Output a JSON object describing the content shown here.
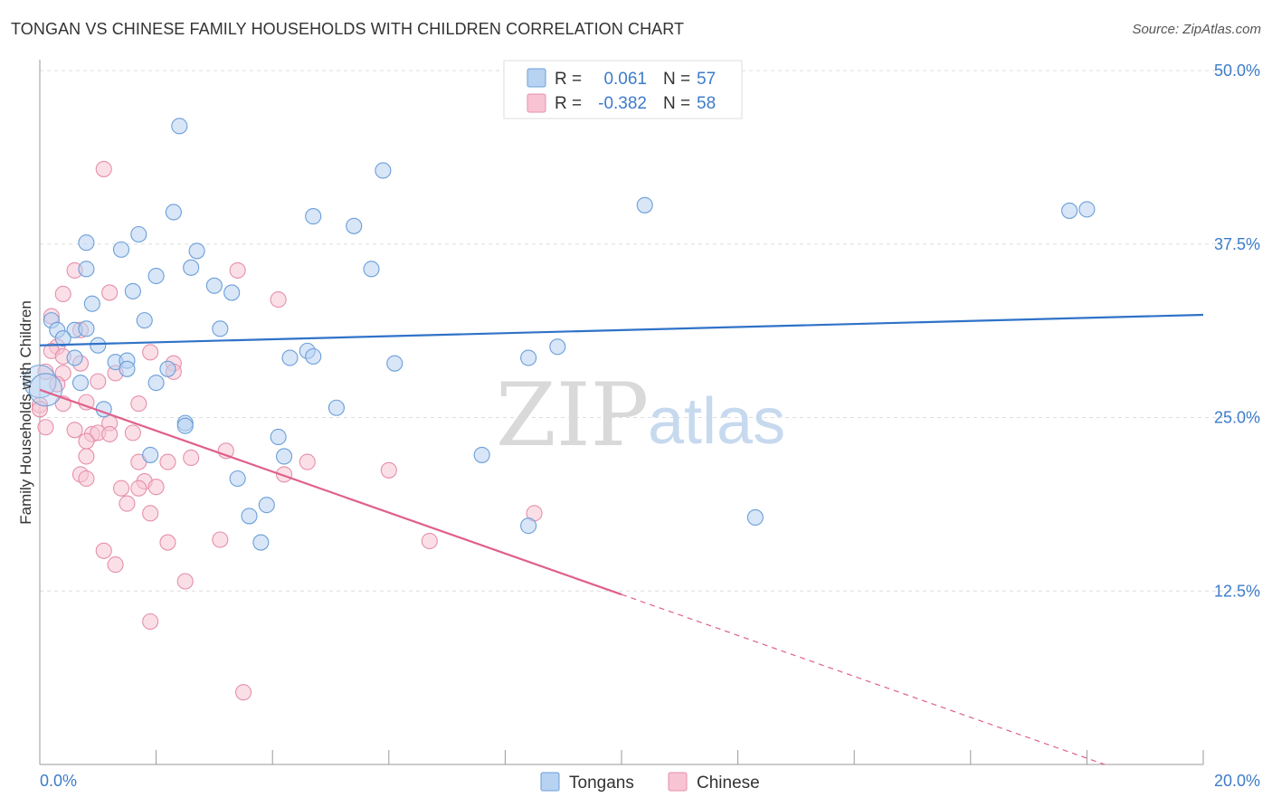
{
  "title": "TONGAN VS CHINESE FAMILY HOUSEHOLDS WITH CHILDREN CORRELATION CHART",
  "source": "Source: ZipAtlas.com",
  "watermark": {
    "zip": "ZIP",
    "atlas": "atlas"
  },
  "colors": {
    "tongans_fill": "#b8d2f2",
    "tongans_stroke": "#6b9fd8",
    "tongans_line": "#2f72c8",
    "chinese_fill": "#f8c4d4",
    "chinese_stroke": "#e58fab",
    "chinese_line": "#e0608a",
    "grid": "#dddddd",
    "axis_label": "#3d7cc9"
  },
  "legend": {
    "rows": [
      {
        "r_label": "R =",
        "r_value": "0.061",
        "n_label": "N =",
        "n_value": "57"
      },
      {
        "r_label": "R =",
        "r_value": "-0.382",
        "n_label": "N =",
        "n_value": "58"
      }
    ]
  },
  "bottom_legend": {
    "tongans": "Tongans",
    "chinese": "Chinese"
  },
  "chart_data": {
    "type": "scatter",
    "title": "TONGAN VS CHINESE FAMILY HOUSEHOLDS WITH CHILDREN CORRELATION CHART",
    "xlabel": "",
    "ylabel": "Family Households with Children",
    "xlim": [
      0,
      20
    ],
    "ylim": [
      0,
      50
    ],
    "x_tick_labels": [
      "0.0%",
      "20.0%"
    ],
    "y_tick_labels": [
      "12.5%",
      "25.0%",
      "37.5%",
      "50.0%"
    ],
    "y_ticks": [
      12.5,
      25.0,
      37.5,
      50.0
    ],
    "grid": true,
    "legend_placement": "top-center",
    "series": [
      {
        "name": "Tongans",
        "r": 0.061,
        "n": 57,
        "trend": {
          "x": [
            0,
            20
          ],
          "y": [
            30.2,
            32.4
          ],
          "dashed_from": null
        },
        "points": [
          [
            2.4,
            46.0
          ],
          [
            5.9,
            42.8
          ],
          [
            10.4,
            40.3
          ],
          [
            17.7,
            39.9
          ],
          [
            18.0,
            40.0
          ],
          [
            2.3,
            39.8
          ],
          [
            4.7,
            39.5
          ],
          [
            5.4,
            38.8
          ],
          [
            1.7,
            38.2
          ],
          [
            0.8,
            37.6
          ],
          [
            1.4,
            37.1
          ],
          [
            2.7,
            37.0
          ],
          [
            0.8,
            35.7
          ],
          [
            2.6,
            35.8
          ],
          [
            5.7,
            35.7
          ],
          [
            2.0,
            35.2
          ],
          [
            3.0,
            34.5
          ],
          [
            1.6,
            34.1
          ],
          [
            3.3,
            34.0
          ],
          [
            0.9,
            33.2
          ],
          [
            0.2,
            32.0
          ],
          [
            1.8,
            32.0
          ],
          [
            3.1,
            31.4
          ],
          [
            0.3,
            31.3
          ],
          [
            0.6,
            31.3
          ],
          [
            0.8,
            31.4
          ],
          [
            0.4,
            30.7
          ],
          [
            1.0,
            30.2
          ],
          [
            8.9,
            30.1
          ],
          [
            4.6,
            29.8
          ],
          [
            0.6,
            29.3
          ],
          [
            1.3,
            29.0
          ],
          [
            4.3,
            29.3
          ],
          [
            4.7,
            29.4
          ],
          [
            8.4,
            29.3
          ],
          [
            1.5,
            29.1
          ],
          [
            6.1,
            28.9
          ],
          [
            1.5,
            28.5
          ],
          [
            2.2,
            28.5
          ],
          [
            0.0,
            27.6
          ],
          [
            0.7,
            27.5
          ],
          [
            2.0,
            27.5
          ],
          [
            5.1,
            25.7
          ],
          [
            1.1,
            25.6
          ],
          [
            2.5,
            24.6
          ],
          [
            2.5,
            24.4
          ],
          [
            4.1,
            23.6
          ],
          [
            1.9,
            22.3
          ],
          [
            4.2,
            22.2
          ],
          [
            7.6,
            22.3
          ],
          [
            3.4,
            20.6
          ],
          [
            3.9,
            18.7
          ],
          [
            3.6,
            17.9
          ],
          [
            12.3,
            17.8
          ],
          [
            8.4,
            17.2
          ],
          [
            3.8,
            16.0
          ],
          [
            0.1,
            27.0
          ]
        ]
      },
      {
        "name": "Chinese",
        "r": -0.382,
        "n": 58,
        "trend": {
          "x": [
            0,
            20
          ],
          "y": [
            27.0,
            -2.5
          ],
          "dashed_from": 10.0
        },
        "points": [
          [
            1.1,
            42.9
          ],
          [
            0.6,
            35.6
          ],
          [
            3.4,
            35.6
          ],
          [
            0.4,
            33.9
          ],
          [
            1.2,
            34.0
          ],
          [
            4.1,
            33.5
          ],
          [
            0.2,
            32.3
          ],
          [
            0.7,
            31.3
          ],
          [
            0.3,
            30.1
          ],
          [
            0.2,
            29.8
          ],
          [
            0.4,
            29.4
          ],
          [
            1.9,
            29.7
          ],
          [
            0.7,
            28.9
          ],
          [
            2.3,
            28.9
          ],
          [
            0.4,
            28.2
          ],
          [
            1.3,
            28.2
          ],
          [
            2.3,
            28.3
          ],
          [
            0.1,
            28.3
          ],
          [
            0.3,
            27.4
          ],
          [
            1.0,
            27.6
          ],
          [
            0.4,
            26.0
          ],
          [
            1.7,
            26.0
          ],
          [
            0.8,
            26.1
          ],
          [
            0.0,
            25.9
          ],
          [
            1.2,
            24.6
          ],
          [
            0.6,
            24.1
          ],
          [
            0.9,
            23.8
          ],
          [
            1.0,
            23.9
          ],
          [
            1.2,
            23.8
          ],
          [
            1.6,
            23.9
          ],
          [
            0.8,
            23.3
          ],
          [
            3.2,
            22.6
          ],
          [
            0.8,
            22.2
          ],
          [
            2.6,
            22.1
          ],
          [
            1.7,
            21.8
          ],
          [
            2.2,
            21.8
          ],
          [
            4.6,
            21.8
          ],
          [
            6.0,
            21.2
          ],
          [
            0.7,
            20.9
          ],
          [
            0.8,
            20.6
          ],
          [
            4.2,
            20.9
          ],
          [
            1.8,
            20.4
          ],
          [
            1.4,
            19.9
          ],
          [
            1.7,
            19.9
          ],
          [
            2.0,
            20.0
          ],
          [
            1.5,
            18.8
          ],
          [
            1.9,
            18.1
          ],
          [
            8.5,
            18.1
          ],
          [
            3.1,
            16.2
          ],
          [
            2.2,
            16.0
          ],
          [
            6.7,
            16.1
          ],
          [
            1.1,
            15.4
          ],
          [
            1.3,
            14.4
          ],
          [
            2.5,
            13.2
          ],
          [
            1.9,
            10.3
          ],
          [
            3.5,
            5.2
          ],
          [
            0.0,
            25.6
          ],
          [
            0.1,
            24.3
          ]
        ]
      }
    ]
  }
}
